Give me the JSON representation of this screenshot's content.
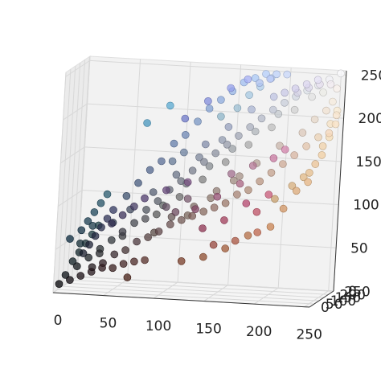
{
  "chart_data": {
    "type": "scatter",
    "projection": "3d",
    "title": "",
    "xlabel": "",
    "ylabel": "",
    "zlabel": "",
    "xlim": [
      0,
      255
    ],
    "ylim": [
      0,
      255
    ],
    "zlim": [
      0,
      255
    ],
    "xticks": [
      0,
      50,
      100,
      150,
      200,
      250
    ],
    "yticks": [
      0,
      50,
      100,
      150,
      200,
      250
    ],
    "zticks": [
      0,
      50,
      100,
      150,
      200,
      250
    ],
    "grid": true,
    "legend": "none",
    "point_color_rule": "each point is colored by its own (x, y, z) = (R, G, B) value",
    "points": [
      [
        10,
        15,
        20
      ],
      [
        20,
        25,
        30
      ],
      [
        30,
        35,
        40
      ],
      [
        40,
        45,
        50
      ],
      [
        50,
        55,
        60
      ],
      [
        60,
        60,
        70
      ],
      [
        70,
        72,
        80
      ],
      [
        80,
        85,
        95
      ],
      [
        90,
        95,
        105
      ],
      [
        100,
        105,
        118
      ],
      [
        110,
        115,
        128
      ],
      [
        120,
        125,
        140
      ],
      [
        130,
        135,
        150
      ],
      [
        140,
        145,
        160
      ],
      [
        150,
        155,
        170
      ],
      [
        160,
        165,
        180
      ],
      [
        170,
        175,
        190
      ],
      [
        180,
        185,
        200
      ],
      [
        190,
        195,
        210
      ],
      [
        200,
        205,
        218
      ],
      [
        210,
        215,
        225
      ],
      [
        220,
        225,
        232
      ],
      [
        230,
        232,
        238
      ],
      [
        240,
        240,
        245
      ],
      [
        250,
        250,
        252
      ],
      [
        5,
        5,
        10
      ],
      [
        15,
        10,
        15
      ],
      [
        25,
        15,
        20
      ],
      [
        35,
        25,
        30
      ],
      [
        45,
        30,
        35
      ],
      [
        55,
        40,
        45
      ],
      [
        65,
        48,
        50
      ],
      [
        75,
        55,
        60
      ],
      [
        85,
        65,
        65
      ],
      [
        95,
        70,
        72
      ],
      [
        105,
        80,
        80
      ],
      [
        115,
        90,
        85
      ],
      [
        125,
        95,
        90
      ],
      [
        135,
        105,
        95
      ],
      [
        145,
        110,
        100
      ],
      [
        155,
        120,
        105
      ],
      [
        165,
        130,
        115
      ],
      [
        175,
        140,
        120
      ],
      [
        185,
        150,
        130
      ],
      [
        195,
        160,
        140
      ],
      [
        205,
        170,
        150
      ],
      [
        215,
        180,
        160
      ],
      [
        225,
        195,
        170
      ],
      [
        235,
        210,
        180
      ],
      [
        245,
        225,
        195
      ],
      [
        250,
        235,
        210
      ],
      [
        10,
        40,
        60
      ],
      [
        20,
        50,
        70
      ],
      [
        25,
        60,
        80
      ],
      [
        30,
        70,
        90
      ],
      [
        35,
        80,
        100
      ],
      [
        40,
        90,
        110
      ],
      [
        30,
        60,
        75
      ],
      [
        20,
        45,
        55
      ],
      [
        60,
        80,
        110
      ],
      [
        70,
        90,
        125
      ],
      [
        80,
        100,
        140
      ],
      [
        90,
        110,
        150
      ],
      [
        100,
        125,
        170
      ],
      [
        110,
        135,
        180
      ],
      [
        120,
        150,
        195
      ],
      [
        130,
        160,
        210
      ],
      [
        140,
        170,
        220
      ],
      [
        150,
        180,
        230
      ],
      [
        160,
        190,
        240
      ],
      [
        170,
        200,
        245
      ],
      [
        180,
        205,
        250
      ],
      [
        190,
        210,
        250
      ],
      [
        200,
        215,
        250
      ],
      [
        185,
        200,
        245
      ],
      [
        175,
        195,
        240
      ],
      [
        120,
        60,
        40
      ],
      [
        140,
        75,
        45
      ],
      [
        160,
        90,
        55
      ],
      [
        180,
        110,
        70
      ],
      [
        200,
        130,
        80
      ],
      [
        150,
        70,
        60
      ],
      [
        170,
        85,
        65
      ],
      [
        190,
        100,
        75
      ],
      [
        210,
        150,
        100
      ],
      [
        220,
        170,
        120
      ],
      [
        230,
        190,
        140
      ],
      [
        240,
        205,
        160
      ],
      [
        245,
        220,
        180
      ],
      [
        160,
        60,
        90
      ],
      [
        180,
        70,
        110
      ],
      [
        140,
        50,
        80
      ],
      [
        200,
        90,
        120
      ],
      [
        190,
        80,
        100
      ],
      [
        170,
        100,
        130
      ],
      [
        60,
        50,
        90
      ],
      [
        80,
        60,
        110
      ],
      [
        100,
        70,
        120
      ],
      [
        120,
        80,
        130
      ],
      [
        50,
        45,
        80
      ],
      [
        70,
        60,
        100
      ],
      [
        90,
        90,
        90
      ],
      [
        110,
        110,
        110
      ],
      [
        130,
        130,
        130
      ],
      [
        150,
        150,
        150
      ],
      [
        170,
        170,
        170
      ],
      [
        190,
        190,
        190
      ],
      [
        210,
        210,
        210
      ],
      [
        225,
        225,
        225
      ],
      [
        235,
        235,
        230
      ],
      [
        80,
        80,
        85
      ],
      [
        60,
        62,
        65
      ],
      [
        40,
        42,
        45
      ],
      [
        100,
        120,
        150
      ],
      [
        110,
        130,
        160
      ],
      [
        130,
        140,
        170
      ],
      [
        150,
        160,
        190
      ],
      [
        170,
        180,
        210
      ],
      [
        190,
        195,
        225
      ],
      [
        200,
        200,
        230
      ],
      [
        210,
        205,
        235
      ],
      [
        220,
        215,
        240
      ],
      [
        230,
        225,
        245
      ],
      [
        120,
        100,
        90
      ],
      [
        140,
        120,
        110
      ],
      [
        160,
        140,
        130
      ],
      [
        180,
        160,
        150
      ],
      [
        200,
        180,
        170
      ],
      [
        220,
        200,
        185
      ],
      [
        230,
        215,
        200
      ],
      [
        240,
        225,
        210
      ],
      [
        245,
        235,
        220
      ],
      [
        90,
        75,
        70
      ],
      [
        105,
        90,
        88
      ],
      [
        125,
        108,
        100
      ],
      [
        145,
        125,
        118
      ],
      [
        165,
        145,
        135
      ],
      [
        50,
        60,
        80
      ],
      [
        65,
        75,
        95
      ],
      [
        85,
        95,
        115
      ],
      [
        105,
        115,
        135
      ],
      [
        125,
        135,
        155
      ],
      [
        145,
        155,
        175
      ],
      [
        70,
        150,
        190
      ],
      [
        90,
        170,
        210
      ],
      [
        110,
        120,
        200
      ],
      [
        130,
        140,
        220
      ],
      [
        150,
        160,
        235
      ],
      [
        165,
        175,
        245
      ],
      [
        200,
        120,
        160
      ],
      [
        210,
        130,
        170
      ],
      [
        180,
        120,
        150
      ],
      [
        160,
        110,
        140
      ],
      [
        230,
        180,
        130
      ],
      [
        235,
        195,
        150
      ],
      [
        240,
        210,
        170
      ],
      [
        245,
        215,
        185
      ],
      [
        250,
        225,
        195
      ],
      [
        250,
        230,
        205
      ],
      [
        200,
        160,
        110
      ],
      [
        215,
        175,
        125
      ],
      [
        225,
        185,
        135
      ],
      [
        35,
        20,
        25
      ],
      [
        45,
        25,
        30
      ],
      [
        55,
        30,
        30
      ],
      [
        65,
        35,
        35
      ],
      [
        75,
        40,
        38
      ],
      [
        85,
        45,
        40
      ],
      [
        70,
        30,
        20
      ],
      [
        25,
        30,
        45
      ],
      [
        30,
        35,
        55
      ],
      [
        35,
        40,
        65
      ],
      [
        40,
        45,
        75
      ],
      [
        45,
        50,
        85
      ],
      [
        50,
        55,
        95
      ],
      [
        15,
        30,
        35
      ],
      [
        20,
        40,
        45
      ],
      [
        25,
        50,
        55
      ],
      [
        30,
        60,
        65
      ],
      [
        35,
        70,
        75
      ],
      [
        95,
        100,
        100
      ],
      [
        115,
        120,
        125
      ],
      [
        135,
        140,
        145
      ],
      [
        155,
        160,
        165
      ],
      [
        175,
        180,
        185
      ],
      [
        195,
        200,
        205
      ],
      [
        140,
        180,
        200
      ],
      [
        155,
        190,
        210
      ],
      [
        165,
        200,
        225
      ],
      [
        175,
        205,
        235
      ],
      [
        185,
        210,
        245
      ],
      [
        212,
        210,
        230
      ],
      [
        222,
        218,
        236
      ],
      [
        232,
        226,
        240
      ],
      [
        242,
        235,
        240
      ],
      [
        248,
        240,
        235
      ],
      [
        130,
        70,
        100
      ],
      [
        150,
        80,
        115
      ],
      [
        120,
        90,
        110
      ],
      [
        100,
        80,
        100
      ],
      [
        110,
        75,
        95
      ]
    ]
  }
}
